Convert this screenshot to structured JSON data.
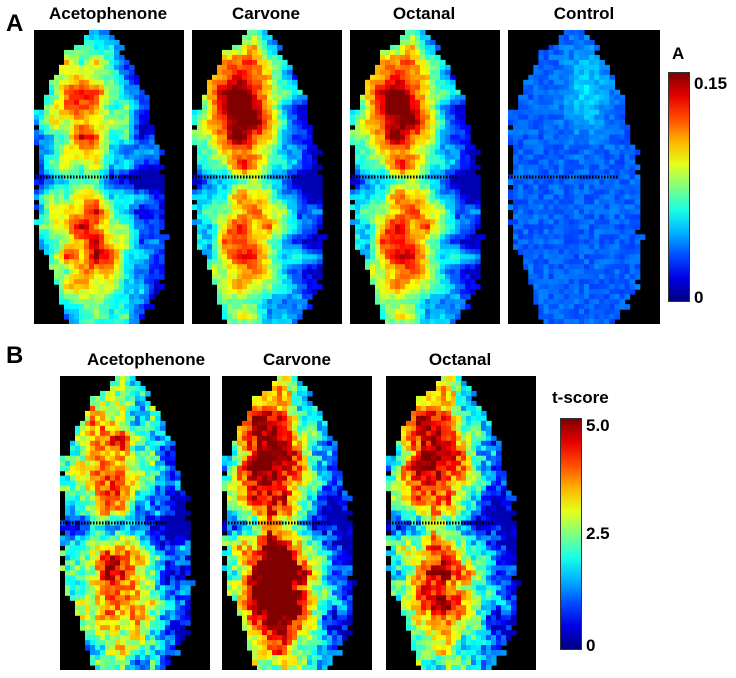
{
  "panel_a": {
    "letter": "A",
    "maps": [
      {
        "title": "Acetophenone",
        "pattern": "acetophenone"
      },
      {
        "title": "Carvone",
        "pattern": "carvone"
      },
      {
        "title": "Octanal",
        "pattern": "octanal"
      },
      {
        "title": "Control",
        "pattern": "control"
      }
    ],
    "colorbar": {
      "title": "A",
      "max_label": "0.15",
      "min_label": "0",
      "min": 0,
      "max": 0.15
    }
  },
  "panel_b": {
    "letter": "B",
    "maps": [
      {
        "title": "Acetophenone",
        "pattern": "acetophenone"
      },
      {
        "title": "Carvone",
        "pattern": "carvone"
      },
      {
        "title": "Octanal",
        "pattern": "octanal"
      }
    ],
    "colorbar": {
      "title": "t-score",
      "max_label": "5.0",
      "mid_label": "2.5",
      "min_label": "0",
      "min": 0,
      "max": 5.0
    }
  },
  "colormap": "jet"
}
